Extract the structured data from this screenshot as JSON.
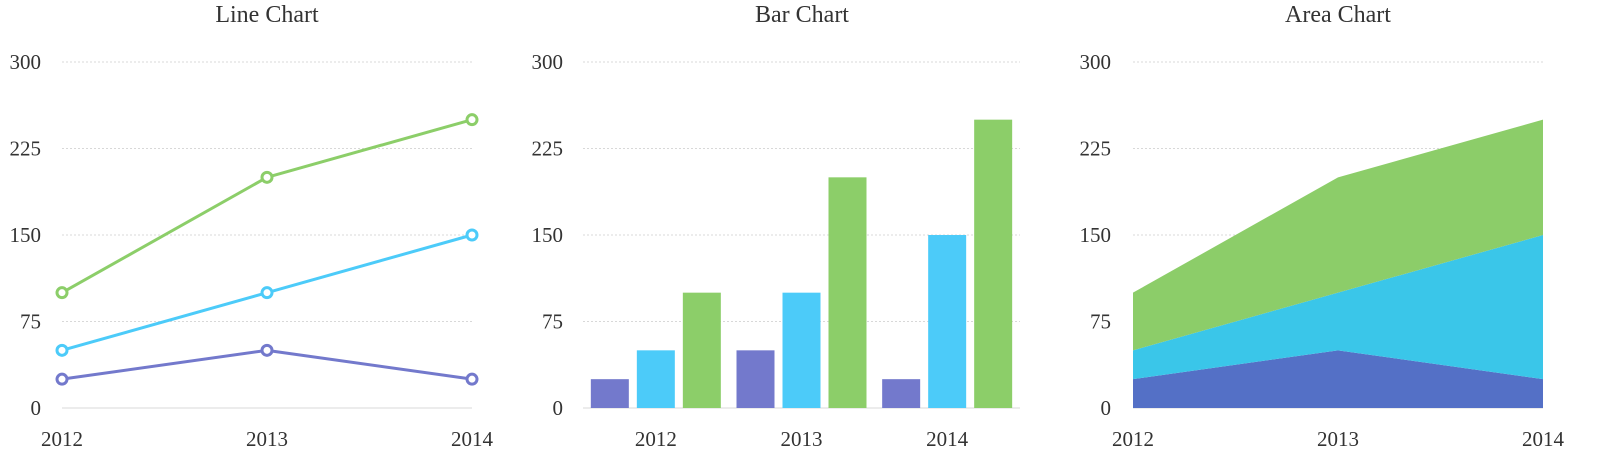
{
  "colors": [
    "#7379cc",
    "#4ccbf9",
    "#8cce69"
  ],
  "area_colors": [
    "#5470c6",
    "#3ac6e9",
    "#8ccd69"
  ],
  "chart_data": [
    {
      "type": "line",
      "title": "Line Chart",
      "categories": [
        "2012",
        "2013",
        "2014"
      ],
      "yticks": [
        "0",
        "75",
        "150",
        "225",
        "300"
      ],
      "ylim": [
        0,
        300
      ],
      "grid": true,
      "series": [
        {
          "values": [
            25,
            50,
            25
          ]
        },
        {
          "values": [
            50,
            100,
            150
          ]
        },
        {
          "values": [
            100,
            200,
            250
          ]
        }
      ]
    },
    {
      "type": "bar",
      "title": "Bar Chart",
      "categories": [
        "2012",
        "2013",
        "2014"
      ],
      "yticks": [
        "0",
        "75",
        "150",
        "225",
        "300"
      ],
      "ylim": [
        0,
        300
      ],
      "grid": true,
      "series": [
        {
          "values": [
            25,
            50,
            25
          ]
        },
        {
          "values": [
            50,
            100,
            150
          ]
        },
        {
          "values": [
            100,
            200,
            250
          ]
        }
      ]
    },
    {
      "type": "area",
      "stacked": true,
      "title": "Area Chart",
      "categories": [
        "2012",
        "2013",
        "2014"
      ],
      "yticks": [
        "0",
        "75",
        "150",
        "225",
        "300"
      ],
      "ylim": [
        0,
        300
      ],
      "grid": true,
      "series": [
        {
          "values": [
            25,
            50,
            25
          ]
        },
        {
          "values": [
            25,
            50,
            125
          ]
        },
        {
          "values": [
            50,
            100,
            100
          ]
        }
      ]
    }
  ]
}
